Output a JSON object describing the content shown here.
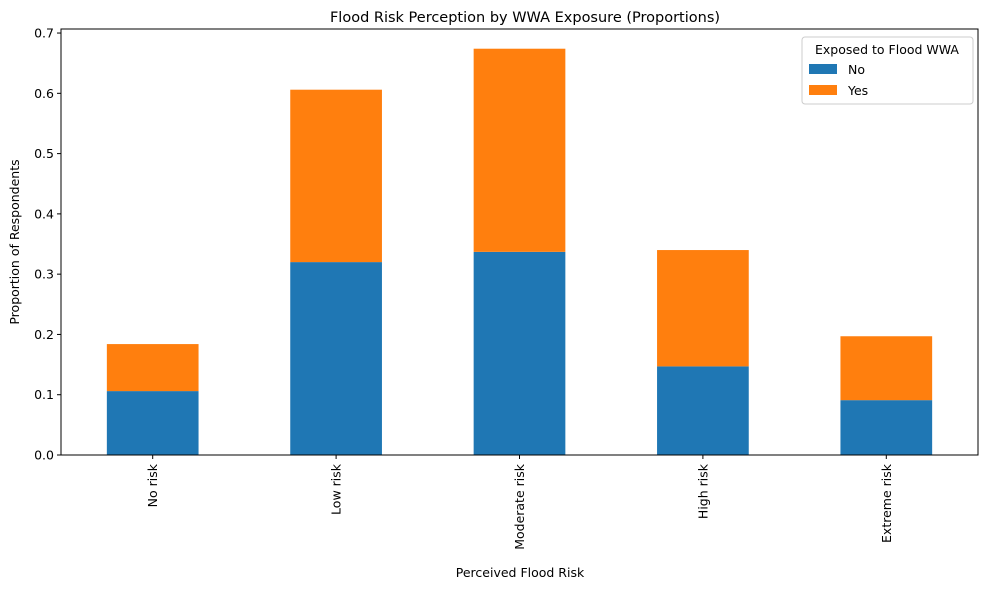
{
  "chart_data": {
    "type": "bar",
    "stacked": true,
    "title": "Flood Risk Perception by WWA Exposure (Proportions)",
    "xlabel": "Perceived Flood Risk",
    "ylabel": "Proportion of Respondents",
    "categories": [
      "No risk",
      "Low risk",
      "Moderate risk",
      "High risk",
      "Extreme risk"
    ],
    "series": [
      {
        "name": "No",
        "color": "#1f77b4",
        "values": [
          0.106,
          0.32,
          0.337,
          0.147,
          0.091
        ]
      },
      {
        "name": "Yes",
        "color": "#ff7f0e",
        "values": [
          0.078,
          0.286,
          0.337,
          0.193,
          0.106
        ]
      }
    ],
    "ylim": [
      0,
      0.7067
    ],
    "yticks": [
      "0.0",
      "0.1",
      "0.2",
      "0.3",
      "0.4",
      "0.5",
      "0.6",
      "0.7"
    ],
    "grid": false,
    "legend": {
      "title": "Exposed to Flood WWA",
      "placement": "top-right"
    }
  }
}
